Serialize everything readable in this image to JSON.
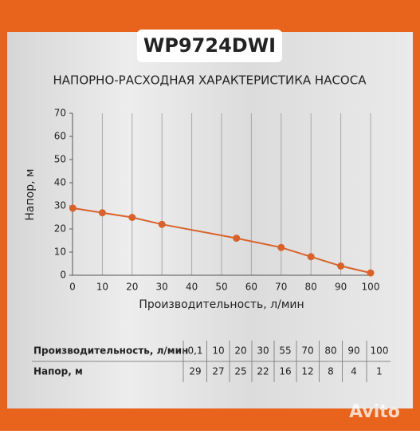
{
  "header": {
    "model": "WP9724DWI"
  },
  "chart_data": {
    "type": "line",
    "title": "НАПОРНО-РАСХОДНАЯ ХАРАКТЕРИСТИКА НАСОСА",
    "x_label": "Производительность, л/мин",
    "y_label": "Напор, м",
    "x": [
      0.1,
      10,
      20,
      30,
      55,
      70,
      80,
      90,
      100
    ],
    "x_labels": [
      "0,1",
      "10",
      "20",
      "30",
      "55",
      "70",
      "80",
      "90",
      "100"
    ],
    "series": [
      {
        "name": "Напор, м",
        "color": "#d9622b",
        "values": [
          29,
          27,
          25,
          22,
          16,
          12,
          8,
          4,
          1
        ]
      }
    ],
    "xlim": [
      0,
      100
    ],
    "xticks": [
      0,
      10,
      20,
      30,
      40,
      50,
      60,
      70,
      80,
      90,
      100
    ],
    "ylim": [
      0,
      70
    ],
    "yticks": [
      0,
      10,
      20,
      30,
      40,
      50,
      60,
      70
    ],
    "grid": true
  },
  "watermark": "Avito"
}
